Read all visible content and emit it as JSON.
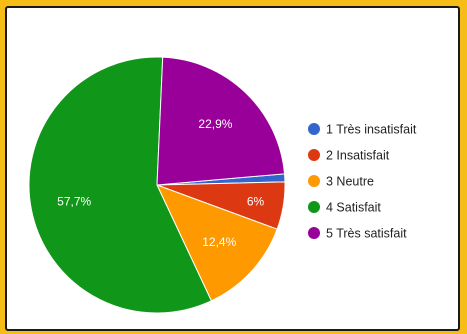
{
  "chart_data": {
    "type": "pie",
    "categories": [
      "1 Très insatisfait",
      "2 Insatisfait",
      "3 Neutre",
      "4 Satisfait",
      "5 Très satisfait"
    ],
    "values": [
      1.0,
      6.0,
      12.4,
      57.7,
      22.9
    ],
    "labels": [
      "",
      "6%",
      "12,4%",
      "57,7%",
      "22,9%"
    ],
    "colors": [
      "#3366cc",
      "#dc3912",
      "#ff9900",
      "#109618",
      "#990099"
    ],
    "legend_position": "right",
    "start_angle_deg": -5,
    "direction": "clockwise"
  }
}
